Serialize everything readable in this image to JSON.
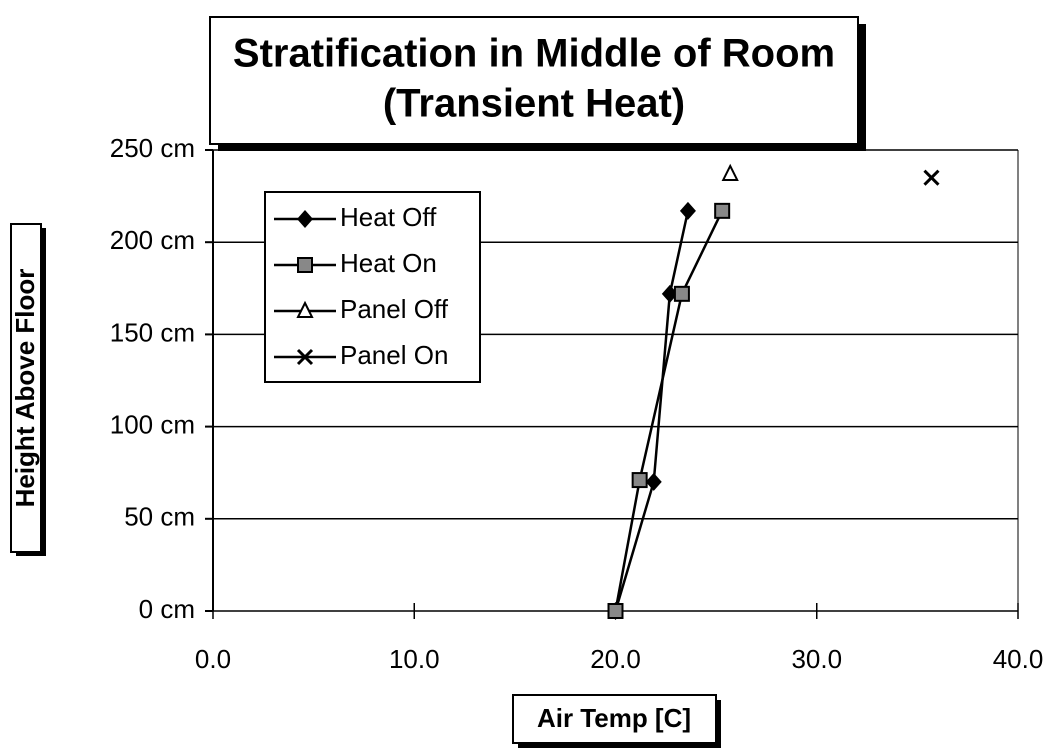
{
  "chart_data": {
    "type": "line",
    "title": [
      "Stratification in Middle of Room",
      "(Transient Heat)"
    ],
    "xlabel": "Air Temp [C]",
    "ylabel": "Height Above Floor",
    "series": [
      {
        "name": "Heat Off",
        "color": "#000000",
        "marker": "diamond",
        "x": [
          20.0,
          21.9,
          22.7,
          23.6
        ],
        "values": [
          0,
          70,
          172,
          217
        ]
      },
      {
        "name": "Heat On",
        "color": "#000000",
        "marker": "square",
        "x": [
          20.0,
          21.2,
          23.3,
          25.3
        ],
        "values": [
          0,
          71,
          172,
          217
        ]
      },
      {
        "name": "Panel Off",
        "color": "#000000",
        "marker": "triangle",
        "x": [
          25.7
        ],
        "values": [
          237
        ]
      },
      {
        "name": "Panel On",
        "color": "#000000",
        "marker": "cross",
        "x": [
          35.7
        ],
        "values": [
          235
        ]
      }
    ],
    "xlim": [
      0,
      40
    ],
    "xticks": [
      {
        "value": 0,
        "label": "0.0"
      },
      {
        "value": 10,
        "label": "10.0"
      },
      {
        "value": 20,
        "label": "20.0"
      },
      {
        "value": 30,
        "label": "30.0"
      },
      {
        "value": 40,
        "label": "40.0"
      }
    ],
    "ylim": [
      0,
      250
    ],
    "yticks": [
      {
        "value": 0,
        "label": "0 cm"
      },
      {
        "value": 50,
        "label": "50 cm"
      },
      {
        "value": 100,
        "label": "100 cm"
      },
      {
        "value": 150,
        "label": "150 cm"
      },
      {
        "value": 200,
        "label": "200 cm"
      },
      {
        "value": 250,
        "label": "250 cm"
      }
    ],
    "grid": true
  }
}
